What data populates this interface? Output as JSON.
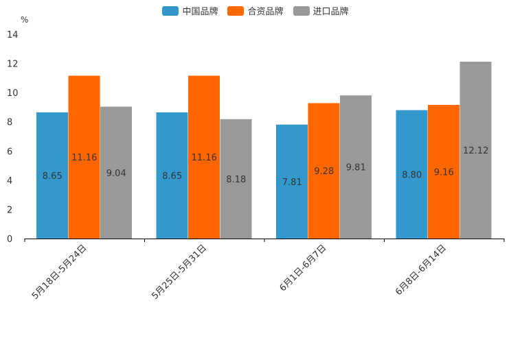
{
  "chart_data": {
    "type": "bar",
    "unit": "%",
    "categories": [
      "5月18日-5月24日",
      "5月25日-5月31日",
      "6月1日-6月7日",
      "6月8日-6月14日"
    ],
    "series": [
      {
        "name": "中国品牌",
        "color": "#3399cc",
        "values": [
          8.65,
          8.65,
          7.81,
          8.8
        ],
        "labels": [
          "8.65",
          "8.65",
          "7.81",
          "8.80"
        ]
      },
      {
        "name": "合资品牌",
        "color": "#ff6600",
        "values": [
          11.16,
          11.16,
          9.28,
          9.16
        ],
        "labels": [
          "11.16",
          "11.16",
          "9.28",
          "9.16"
        ]
      },
      {
        "name": "进口品牌",
        "color": "#999999",
        "values": [
          9.04,
          8.18,
          9.81,
          12.12
        ],
        "labels": [
          "9.04",
          "8.18",
          "9.81",
          "12.12"
        ]
      }
    ],
    "yticks": [
      "0",
      "2",
      "4",
      "6",
      "8",
      "10",
      "12",
      "14"
    ],
    "ylim": [
      0,
      14
    ],
    "legend_position": "top-center",
    "grid": false
  }
}
